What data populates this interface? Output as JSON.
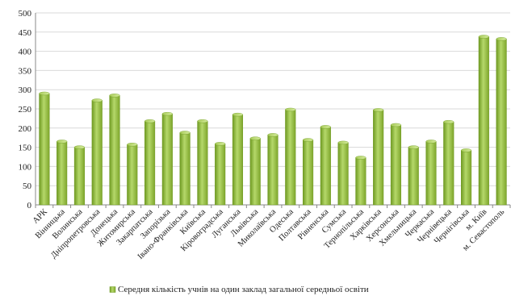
{
  "chart_data": {
    "type": "bar",
    "title": "",
    "xlabel": "",
    "ylabel": "",
    "ylim": [
      0,
      500
    ],
    "yticks": [
      0,
      50,
      100,
      150,
      200,
      250,
      300,
      350,
      400,
      450,
      500
    ],
    "grid": true,
    "legend_position": "bottom",
    "categories": [
      "АРК",
      "Вінницька",
      "Волинська",
      "Дніпропетровська",
      "Донецька",
      "Житомирська",
      "Закарпатська",
      "Запорізька",
      "Івано-Франківська",
      "Київська",
      "Кіровоградська",
      "Луганська",
      "Львівська",
      "Миколаївська",
      "Одеська",
      "Полтавська",
      "Рівненська",
      "Сумська",
      "Тернопільська",
      "Харківська",
      "Херсонська",
      "Хмельницька",
      "Черкаська",
      "Чернівецька",
      "Чернігівська",
      "м. Київ",
      "м. Севастополь"
    ],
    "series": [
      {
        "name": "Середня кількість учнів на один заклад загальної середньої освіти",
        "color": "#8fb83a",
        "values": [
          290,
          165,
          150,
          272,
          285,
          157,
          218,
          237,
          188,
          218,
          159,
          235,
          173,
          182,
          248,
          169,
          203,
          162,
          123,
          247,
          208,
          150,
          165,
          216,
          142,
          438,
          432
        ]
      }
    ]
  }
}
